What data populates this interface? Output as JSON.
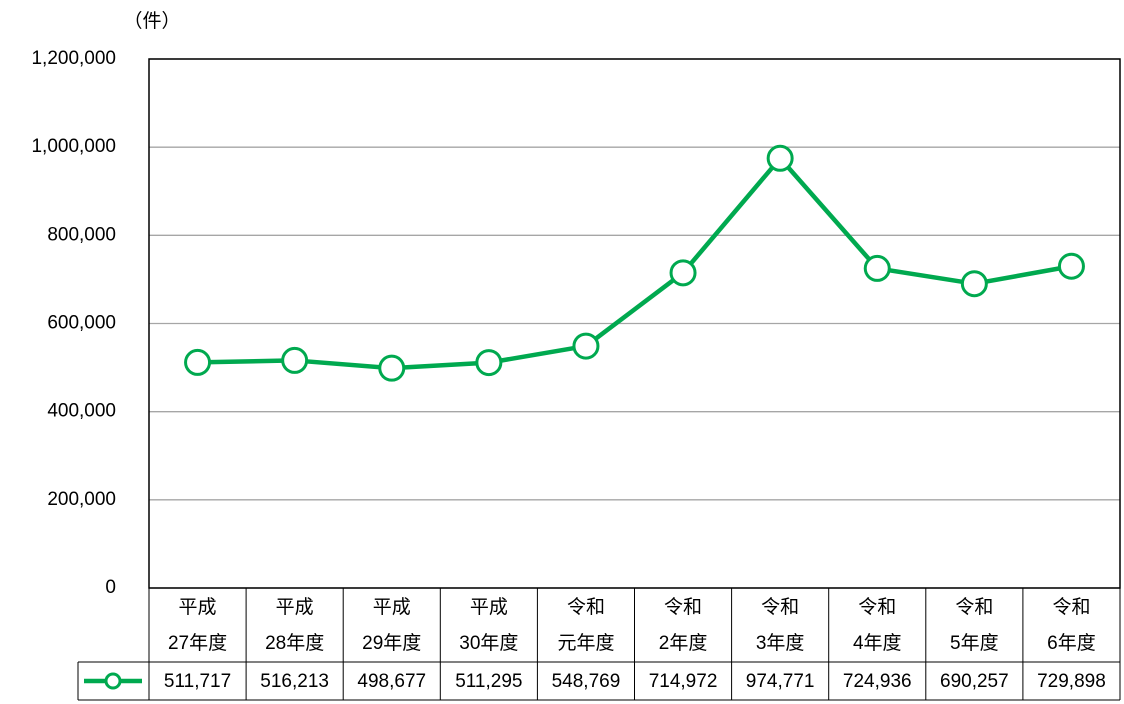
{
  "chart_data": {
    "type": "line",
    "y_label": "（件）",
    "categories": [
      [
        "平成",
        "27年度"
      ],
      [
        "平成",
        "28年度"
      ],
      [
        "平成",
        "29年度"
      ],
      [
        "平成",
        "30年度"
      ],
      [
        "令和",
        "元年度"
      ],
      [
        "令和",
        "2年度"
      ],
      [
        "令和",
        "3年度"
      ],
      [
        "令和",
        "4年度"
      ],
      [
        "令和",
        "5年度"
      ],
      [
        "令和",
        "6年度"
      ]
    ],
    "series": [
      {
        "color": "#00a94f",
        "values": [
          511717,
          516213,
          498677,
          511295,
          548769,
          714972,
          974771,
          724936,
          690257,
          729898
        ],
        "value_labels": [
          "511,717",
          "516,213",
          "498,677",
          "511,295",
          "548,769",
          "714,972",
          "974,771",
          "724,936",
          "690,257",
          "729,898"
        ]
      }
    ],
    "ylim": [
      0,
      1200000
    ],
    "yticks": [
      0,
      {
        "value": 200000,
        "label": "200,000"
      },
      {
        "value": 400000,
        "label": "400,000"
      },
      {
        "value": 600000,
        "label": "600,000"
      },
      {
        "value": 800000,
        "label": "800,000"
      },
      {
        "value": 1000000,
        "label": "1,000,000"
      },
      {
        "value": 1200000,
        "label": "1,200,000"
      }
    ],
    "grid": true
  }
}
